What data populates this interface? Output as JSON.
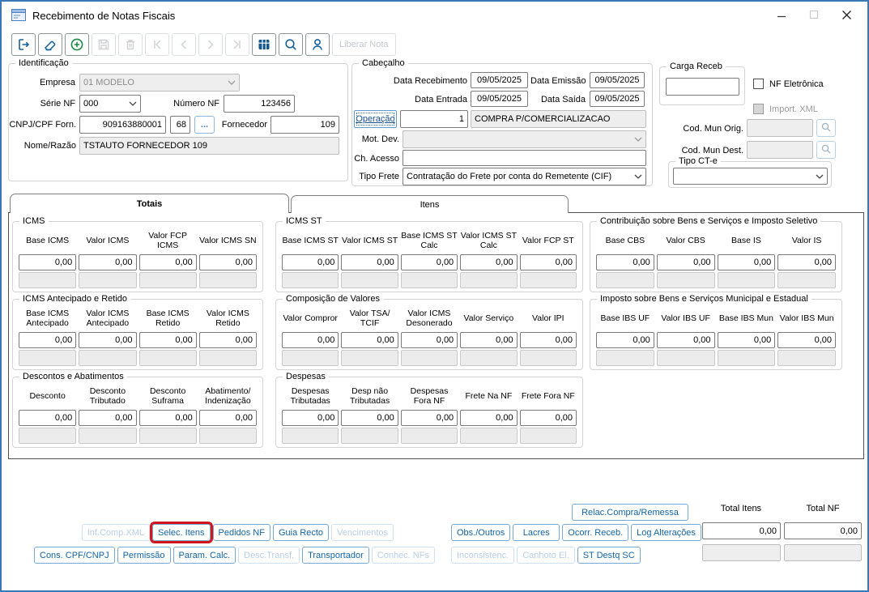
{
  "window": {
    "title": "Recebimento de Notas Fiscais",
    "controls": [
      {
        "icon": "minimize",
        "enabled": true
      },
      {
        "icon": "maximize",
        "enabled": false
      },
      {
        "icon": "close",
        "enabled": true
      }
    ]
  },
  "toolbar": {
    "items": [
      {
        "icon": "exit",
        "enabled": true
      },
      {
        "icon": "eraser",
        "enabled": true
      },
      {
        "icon": "add",
        "enabled": true
      },
      {
        "icon": "save",
        "enabled": false
      },
      {
        "icon": "delete",
        "enabled": false
      },
      {
        "icon": "nav-first",
        "enabled": false
      },
      {
        "icon": "nav-prev",
        "enabled": false
      },
      {
        "icon": "nav-next",
        "enabled": false
      },
      {
        "icon": "nav-last",
        "enabled": false
      },
      {
        "icon": "grid",
        "enabled": true
      },
      {
        "icon": "search",
        "enabled": true
      },
      {
        "icon": "user",
        "enabled": true
      }
    ],
    "liberar_label": "Liberar Nota"
  },
  "identificacao": {
    "title": "Identificação",
    "empresa_label": "Empresa",
    "empresa_value": "01 MODELO",
    "serie_label": "Série NF",
    "serie_value": "000",
    "numero_label": "Número NF",
    "numero_value": "123456",
    "cnpj_label": "CNPJ/CPF Forn.",
    "cnpj_value": "909163880001",
    "cnpj_dv": "68",
    "browse": "...",
    "fornecedor_label": "Fornecedor",
    "fornecedor_value": "109",
    "nome_label": "Nome/Razão",
    "nome_value": "TSTAUTO FORNECEDOR 109"
  },
  "cabecalho": {
    "title": "Cabeçalho",
    "data_recebimento_label": "Data Recebimento",
    "data_recebimento": "09/05/2025",
    "data_emissao_label": "Data Emissão",
    "data_emissao": "09/05/2025",
    "data_entrada_label": "Data Entrada",
    "data_entrada": "09/05/2025",
    "data_saida_label": "Data Saída",
    "data_saida": "09/05/2025",
    "operacao_label": "Operação",
    "operacao_num": "1",
    "operacao_desc": "COMPRA P/COMERCIALIZACAO",
    "mot_dev_label": "Mot. Dev.",
    "mot_dev_value": "",
    "ch_acesso_label": "Ch. Acesso",
    "ch_acesso_value": "",
    "tipo_frete_label": "Tipo Frete",
    "tipo_frete_value": "Contratação do Frete por conta do Remetente (CIF)"
  },
  "right_panel": {
    "carga_title": "Carga Receb",
    "carga_value": "",
    "nf_eletronica_label": "NF Eletrônica",
    "import_xml_label": "Import. XML",
    "cod_mun_orig_label": "Cod. Mun Orig.",
    "cod_mun_orig_value": "",
    "cod_mun_dest_label": "Cod. Mun Dest.",
    "cod_mun_dest_value": "",
    "tipo_cte_title": "Tipo CT-e",
    "tipo_cte_value": ""
  },
  "tabs": {
    "totais": "Totais",
    "itens": "Itens"
  },
  "tax_groups": [
    {
      "title": "ICMS",
      "fields": [
        {
          "label": "Base ICMS",
          "value": "0,00"
        },
        {
          "label": "Valor ICMS",
          "value": "0,00"
        },
        {
          "label": "Valor FCP ICMS",
          "value": "0,00"
        },
        {
          "label": "Valor ICMS SN",
          "value": "0,00"
        }
      ]
    },
    {
      "title": "ICMS ST",
      "fields": [
        {
          "label": "Base ICMS ST",
          "value": "0,00"
        },
        {
          "label": "Valor ICMS ST",
          "value": "0,00"
        },
        {
          "label": "Base ICMS ST Calc",
          "value": "0,00"
        },
        {
          "label": "Valor ICMS ST Calc",
          "value": "0,00"
        },
        {
          "label": "Valor FCP ST",
          "value": "0,00"
        }
      ]
    },
    {
      "title": "Contribuição sobre Bens e Serviços e Imposto Seletivo",
      "fields": [
        {
          "label": "Base CBS",
          "value": "0,00"
        },
        {
          "label": "Valor CBS",
          "value": "0,00"
        },
        {
          "label": "Base IS",
          "value": "0,00"
        },
        {
          "label": "Valor IS",
          "value": "0,00"
        }
      ]
    },
    {
      "title": "ICMS Antecipado e Retido",
      "fields": [
        {
          "label": "Base ICMS Antecipado",
          "value": "0,00"
        },
        {
          "label": "Valor ICMS Antecipado",
          "value": "0,00"
        },
        {
          "label": "Base ICMS Retido",
          "value": "0,00"
        },
        {
          "label": "Valor ICMS Retido",
          "value": "0,00"
        }
      ]
    },
    {
      "title": "Composição de Valores",
      "fields": [
        {
          "label": "Valor Compror",
          "value": "0,00"
        },
        {
          "label": "Valor TSA/ TCIF",
          "value": "0,00"
        },
        {
          "label": "Valor ICMS Desonerado",
          "value": "0,00"
        },
        {
          "label": "Valor Serviço",
          "value": "0,00"
        },
        {
          "label": "Valor IPI",
          "value": "0,00"
        }
      ]
    },
    {
      "title": "Imposto sobre Bens e Serviços Municipal e Estadual",
      "fields": [
        {
          "label": "Base IBS UF",
          "value": "0,00"
        },
        {
          "label": "Valor IBS UF",
          "value": "0,00"
        },
        {
          "label": "Base IBS Mun",
          "value": "0,00"
        },
        {
          "label": "Valor IBS Mun",
          "value": "0,00"
        }
      ]
    },
    {
      "title": "Descontos e Abatimentos",
      "fields": [
        {
          "label": "Desconto",
          "value": "0,00"
        },
        {
          "label": "Desconto Tributado",
          "value": "0,00"
        },
        {
          "label": "Desconto Suframa",
          "value": "0,00"
        },
        {
          "label": "Abatimento/ Indenização",
          "value": "0,00"
        }
      ]
    },
    {
      "title": "Despesas",
      "fields": [
        {
          "label": "Despesas Tributadas",
          "value": "0,00"
        },
        {
          "label": "Desp não Tributadas",
          "value": "0,00"
        },
        {
          "label": "Despesas Fora NF",
          "value": "0,00"
        },
        {
          "label": "Frete Na NF",
          "value": "0,00"
        },
        {
          "label": "Frete Fora NF",
          "value": "0,00"
        }
      ]
    }
  ],
  "footer": {
    "relac_label": "Relac.Compra/Remessa",
    "left_row1": [
      {
        "label": "Inf.Comp.XML",
        "enabled": false
      },
      {
        "label": "Selec. Itens",
        "enabled": true,
        "highlight": true
      },
      {
        "label": "Pedidos NF",
        "enabled": true
      },
      {
        "label": "Guia Recto",
        "enabled": true
      },
      {
        "label": "Vencimentos",
        "enabled": false
      }
    ],
    "left_row2": [
      {
        "label": "Cons. CPF/CNPJ",
        "enabled": true
      },
      {
        "label": "Permissão",
        "enabled": true
      },
      {
        "label": "Param. Calc.",
        "enabled": true
      },
      {
        "label": "Desc.Transf.",
        "enabled": false
      },
      {
        "label": "Transportador",
        "enabled": true
      },
      {
        "label": "Conhec. NFs",
        "enabled": false
      }
    ],
    "right_row1": [
      {
        "label": "Obs./Outros",
        "enabled": true
      },
      {
        "label": "Lacres",
        "enabled": true
      },
      {
        "label": "Ocorr. Receb.",
        "enabled": true
      },
      {
        "label": "Log Alterações",
        "enabled": true
      }
    ],
    "right_row2": [
      {
        "label": "Inconsistenc.",
        "enabled": false
      },
      {
        "label": "Canhoto El.",
        "enabled": false
      },
      {
        "label": "ST Destq SC",
        "enabled": true
      }
    ],
    "totals": {
      "itens_label": "Total Itens",
      "nf_label": "Total NF",
      "itens_value": "0,00",
      "nf_value": "0,00"
    }
  }
}
